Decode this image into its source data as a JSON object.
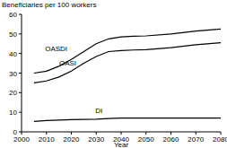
{
  "chart_data": {
    "type": "line",
    "y_label": "Beneficiaries per 100 workers",
    "x_label": "Year",
    "x": [
      2005,
      2010,
      2015,
      2020,
      2025,
      2030,
      2035,
      2040,
      2045,
      2050,
      2060,
      2070,
      2080
    ],
    "series": [
      {
        "name": "OASDI",
        "color": "#000000",
        "values": [
          30,
          31,
          33.5,
          37,
          41,
          45,
          47.5,
          48.5,
          48.8,
          49,
          50,
          51.5,
          52.5
        ]
      },
      {
        "name": "OASI",
        "color": "#000000",
        "values": [
          25,
          26,
          28,
          31,
          35,
          38.5,
          41,
          41.5,
          41.8,
          42,
          43,
          44.5,
          45.5
        ]
      },
      {
        "name": "DI",
        "color": "#000000",
        "values": [
          5.3,
          5.8,
          6,
          6.2,
          6.4,
          6.5,
          6.8,
          7,
          7,
          7,
          7,
          7,
          7
        ]
      }
    ],
    "xlim": [
      2000,
      2080
    ],
    "ylim": [
      0,
      60
    ],
    "xticks": [
      2000,
      2010,
      2020,
      2030,
      2040,
      2050,
      2060,
      2070,
      2080
    ],
    "yticks": [
      0,
      10,
      20,
      30,
      40,
      50,
      60
    ],
    "grid": false
  }
}
